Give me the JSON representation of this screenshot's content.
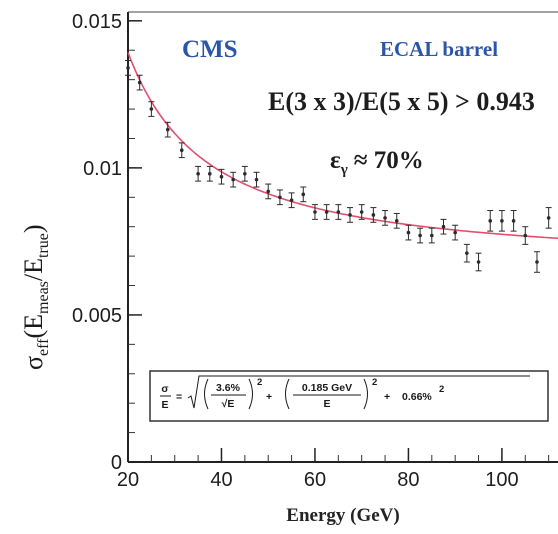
{
  "chart_data": {
    "type": "scatter",
    "xlabel": "Energy (GeV)",
    "ylabel": {
      "sym": "σ",
      "sub": "eff",
      "open": "(E",
      "meas_sub": "meas",
      "slash": "/E",
      "true_sub": "true",
      "close": ")"
    },
    "xlim": [
      20,
      112
    ],
    "ylim": [
      0,
      0.0153
    ],
    "x_ticks": [
      20,
      40,
      60,
      80,
      100
    ],
    "x_minor_step": 5,
    "y_ticks": [
      {
        "value": 0,
        "label": "0"
      },
      {
        "value": 0.005,
        "label": "0.005"
      },
      {
        "value": 0.01,
        "label": "0.01"
      },
      {
        "value": 0.015,
        "label": "0.015"
      }
    ],
    "y_minor_step": 0.001,
    "grid": false,
    "annotations": {
      "experiment": "CMS",
      "detector": "ECAL barrel",
      "cut": "E(3 x 3)/E(5 x 5) > 0.943",
      "efficiency_symbol": "ε",
      "efficiency_sub": "γ",
      "efficiency_value": "≈ 70%"
    },
    "formula": {
      "lhs_top": "σ",
      "lhs_bottom": "E",
      "eq": "=",
      "t1_num": "3.6%",
      "t1_den": "√E",
      "sq1": "2",
      "plus1": "+",
      "t2_num": "0.185 GeV",
      "t2_den": "E",
      "sq2": "2",
      "plus2": "+",
      "t3": "0.66%",
      "sq3": "2"
    },
    "fit": {
      "stochastic": 0.036,
      "noise_gev": 0.185,
      "constant": 0.0066,
      "color": "#e0506e"
    },
    "series": [
      {
        "color": "#2b2b2b",
        "points": [
          {
            "x": 20,
            "y": 0.0134,
            "err": 0.00025
          },
          {
            "x": 22.5,
            "y": 0.0129,
            "err": 0.00025
          },
          {
            "x": 25,
            "y": 0.012,
            "err": 0.00025
          },
          {
            "x": 28.5,
            "y": 0.0113,
            "err": 0.00025
          },
          {
            "x": 31.5,
            "y": 0.0106,
            "err": 0.00025
          },
          {
            "x": 35,
            "y": 0.0098,
            "err": 0.00025
          },
          {
            "x": 37.5,
            "y": 0.0098,
            "err": 0.00025
          },
          {
            "x": 40,
            "y": 0.0097,
            "err": 0.00025
          },
          {
            "x": 42.5,
            "y": 0.0096,
            "err": 0.00025
          },
          {
            "x": 45,
            "y": 0.0098,
            "err": 0.00025
          },
          {
            "x": 47.5,
            "y": 0.0096,
            "err": 0.00025
          },
          {
            "x": 50,
            "y": 0.0092,
            "err": 0.00025
          },
          {
            "x": 52.5,
            "y": 0.009,
            "err": 0.00025
          },
          {
            "x": 55,
            "y": 0.0089,
            "err": 0.00025
          },
          {
            "x": 57.5,
            "y": 0.0091,
            "err": 0.00025
          },
          {
            "x": 60,
            "y": 0.0085,
            "err": 0.00025
          },
          {
            "x": 62.5,
            "y": 0.0085,
            "err": 0.00025
          },
          {
            "x": 65,
            "y": 0.0085,
            "err": 0.00025
          },
          {
            "x": 67.5,
            "y": 0.0084,
            "err": 0.00025
          },
          {
            "x": 70,
            "y": 0.0085,
            "err": 0.00025
          },
          {
            "x": 72.5,
            "y": 0.0084,
            "err": 0.00025
          },
          {
            "x": 75,
            "y": 0.0083,
            "err": 0.00025
          },
          {
            "x": 77.5,
            "y": 0.0082,
            "err": 0.00025
          },
          {
            "x": 80,
            "y": 0.0078,
            "err": 0.00025
          },
          {
            "x": 82.5,
            "y": 0.0077,
            "err": 0.00025
          },
          {
            "x": 85,
            "y": 0.0077,
            "err": 0.00025
          },
          {
            "x": 87.5,
            "y": 0.008,
            "err": 0.00025
          },
          {
            "x": 90,
            "y": 0.0078,
            "err": 0.00025
          },
          {
            "x": 92.5,
            "y": 0.0071,
            "err": 0.0003
          },
          {
            "x": 95,
            "y": 0.0068,
            "err": 0.0003
          },
          {
            "x": 97.5,
            "y": 0.0082,
            "err": 0.00035
          },
          {
            "x": 100,
            "y": 0.0082,
            "err": 0.00035
          },
          {
            "x": 102.5,
            "y": 0.0082,
            "err": 0.00035
          },
          {
            "x": 105,
            "y": 0.0077,
            "err": 0.0003
          },
          {
            "x": 107.5,
            "y": 0.0068,
            "err": 0.00035
          },
          {
            "x": 110,
            "y": 0.0083,
            "err": 0.00035
          }
        ]
      }
    ]
  }
}
